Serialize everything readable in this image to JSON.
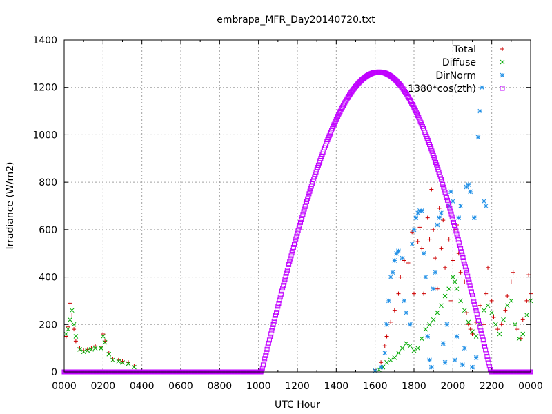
{
  "chart_data": {
    "type": "scatter",
    "title": "embrapa_MFR_Day20140720.txt",
    "xlabel": "UTC Hour",
    "ylabel": "Irradiance (W/m2)",
    "xlim": [
      0,
      24
    ],
    "ylim": [
      0,
      1400
    ],
    "x_tick_labels": [
      "0000",
      "0200",
      "0400",
      "0600",
      "0800",
      "1000",
      "1200",
      "1400",
      "1600",
      "1800",
      "2000",
      "2200",
      "0000"
    ],
    "y_tick_values": [
      0,
      200,
      400,
      600,
      800,
      1000,
      1200,
      1400
    ],
    "grid": true,
    "legend_position": "top-right",
    "series": [
      {
        "name": "Total",
        "marker": "+",
        "color": "#cc0000",
        "points": [
          [
            0.1,
            150
          ],
          [
            0.2,
            190
          ],
          [
            0.3,
            290
          ],
          [
            0.4,
            240
          ],
          [
            0.5,
            180
          ],
          [
            0.6,
            130
          ],
          [
            0.8,
            100
          ],
          [
            1.0,
            90
          ],
          [
            1.2,
            95
          ],
          [
            1.4,
            100
          ],
          [
            1.6,
            110
          ],
          [
            1.9,
            105
          ],
          [
            2.0,
            160
          ],
          [
            2.1,
            130
          ],
          [
            2.3,
            80
          ],
          [
            2.5,
            55
          ],
          [
            2.8,
            50
          ],
          [
            3.0,
            45
          ],
          [
            3.3,
            40
          ],
          [
            3.6,
            25
          ],
          [
            16.0,
            10
          ],
          [
            16.3,
            40
          ],
          [
            16.5,
            110
          ],
          [
            16.6,
            150
          ],
          [
            16.8,
            210
          ],
          [
            17.0,
            260
          ],
          [
            17.2,
            330
          ],
          [
            17.3,
            400
          ],
          [
            17.5,
            470
          ],
          [
            17.7,
            460
          ],
          [
            17.9,
            590
          ],
          [
            18.0,
            330
          ],
          [
            18.2,
            550
          ],
          [
            18.3,
            610
          ],
          [
            18.4,
            520
          ],
          [
            18.5,
            330
          ],
          [
            18.7,
            650
          ],
          [
            18.8,
            560
          ],
          [
            18.9,
            770
          ],
          [
            19.0,
            600
          ],
          [
            19.1,
            480
          ],
          [
            19.2,
            350
          ],
          [
            19.3,
            690
          ],
          [
            19.4,
            520
          ],
          [
            19.5,
            640
          ],
          [
            19.6,
            440
          ],
          [
            19.7,
            700
          ],
          [
            19.8,
            560
          ],
          [
            19.9,
            300
          ],
          [
            20.0,
            470
          ],
          [
            20.1,
            600
          ],
          [
            20.2,
            620
          ],
          [
            20.3,
            500
          ],
          [
            20.4,
            420
          ],
          [
            20.6,
            380
          ],
          [
            20.7,
            250
          ],
          [
            20.8,
            200
          ],
          [
            20.9,
            180
          ],
          [
            21.0,
            160
          ],
          [
            21.2,
            210
          ],
          [
            21.4,
            280
          ],
          [
            21.6,
            200
          ],
          [
            21.7,
            330
          ],
          [
            21.8,
            440
          ],
          [
            22.0,
            300
          ],
          [
            22.1,
            230
          ],
          [
            22.3,
            180
          ],
          [
            22.5,
            200
          ],
          [
            22.7,
            260
          ],
          [
            22.8,
            320
          ],
          [
            23.0,
            380
          ],
          [
            23.1,
            420
          ],
          [
            23.3,
            180
          ],
          [
            23.5,
            140
          ],
          [
            23.6,
            220
          ],
          [
            23.8,
            300
          ],
          [
            23.9,
            410
          ],
          [
            24.0,
            330
          ]
        ]
      },
      {
        "name": "Diffuse",
        "marker": "x",
        "color": "#00aa00",
        "points": [
          [
            0.1,
            160
          ],
          [
            0.2,
            180
          ],
          [
            0.3,
            220
          ],
          [
            0.4,
            260
          ],
          [
            0.5,
            200
          ],
          [
            0.6,
            150
          ],
          [
            0.8,
            95
          ],
          [
            1.0,
            85
          ],
          [
            1.2,
            90
          ],
          [
            1.4,
            95
          ],
          [
            1.6,
            100
          ],
          [
            1.9,
            100
          ],
          [
            2.0,
            150
          ],
          [
            2.1,
            125
          ],
          [
            2.3,
            75
          ],
          [
            2.5,
            50
          ],
          [
            2.8,
            45
          ],
          [
            3.0,
            40
          ],
          [
            3.3,
            35
          ],
          [
            3.6,
            20
          ],
          [
            16.0,
            5
          ],
          [
            16.2,
            10
          ],
          [
            16.4,
            20
          ],
          [
            16.6,
            40
          ],
          [
            16.8,
            50
          ],
          [
            17.0,
            60
          ],
          [
            17.2,
            80
          ],
          [
            17.4,
            100
          ],
          [
            17.6,
            120
          ],
          [
            17.8,
            110
          ],
          [
            18.0,
            90
          ],
          [
            18.2,
            100
          ],
          [
            18.4,
            140
          ],
          [
            18.6,
            180
          ],
          [
            18.8,
            200
          ],
          [
            19.0,
            220
          ],
          [
            19.2,
            250
          ],
          [
            19.4,
            280
          ],
          [
            19.6,
            320
          ],
          [
            19.8,
            350
          ],
          [
            20.0,
            400
          ],
          [
            20.1,
            380
          ],
          [
            20.2,
            350
          ],
          [
            20.4,
            300
          ],
          [
            20.6,
            260
          ],
          [
            20.8,
            210
          ],
          [
            21.0,
            170
          ],
          [
            21.2,
            150
          ],
          [
            21.4,
            200
          ],
          [
            21.6,
            260
          ],
          [
            21.8,
            280
          ],
          [
            22.0,
            250
          ],
          [
            22.2,
            200
          ],
          [
            22.4,
            160
          ],
          [
            22.6,
            220
          ],
          [
            22.8,
            280
          ],
          [
            23.0,
            300
          ],
          [
            23.2,
            200
          ],
          [
            23.4,
            140
          ],
          [
            23.6,
            160
          ],
          [
            23.8,
            240
          ],
          [
            24.0,
            300
          ]
        ]
      },
      {
        "name": "DirNorm",
        "marker": "*",
        "color": "#1f8fe6",
        "points": [
          [
            16.0,
            5
          ],
          [
            16.3,
            20
          ],
          [
            16.5,
            80
          ],
          [
            16.6,
            200
          ],
          [
            16.7,
            300
          ],
          [
            16.8,
            400
          ],
          [
            16.9,
            420
          ],
          [
            17.0,
            470
          ],
          [
            17.1,
            500
          ],
          [
            17.2,
            510
          ],
          [
            17.4,
            480
          ],
          [
            17.5,
            300
          ],
          [
            17.6,
            250
          ],
          [
            17.8,
            200
          ],
          [
            17.9,
            540
          ],
          [
            18.0,
            600
          ],
          [
            18.1,
            650
          ],
          [
            18.2,
            670
          ],
          [
            18.3,
            680
          ],
          [
            18.4,
            680
          ],
          [
            18.5,
            500
          ],
          [
            18.6,
            400
          ],
          [
            18.7,
            150
          ],
          [
            18.8,
            50
          ],
          [
            18.9,
            20
          ],
          [
            19.0,
            350
          ],
          [
            19.1,
            420
          ],
          [
            19.2,
            620
          ],
          [
            19.3,
            650
          ],
          [
            19.4,
            670
          ],
          [
            19.5,
            120
          ],
          [
            19.6,
            40
          ],
          [
            19.7,
            200
          ],
          [
            19.8,
            700
          ],
          [
            19.9,
            760
          ],
          [
            20.0,
            720
          ],
          [
            20.1,
            50
          ],
          [
            20.2,
            150
          ],
          [
            20.3,
            650
          ],
          [
            20.4,
            700
          ],
          [
            20.5,
            30
          ],
          [
            20.6,
            100
          ],
          [
            20.7,
            780
          ],
          [
            20.8,
            790
          ],
          [
            20.9,
            760
          ],
          [
            21.0,
            20
          ],
          [
            21.1,
            650
          ],
          [
            21.2,
            60
          ],
          [
            21.3,
            990
          ],
          [
            21.4,
            1100
          ],
          [
            21.5,
            1200
          ],
          [
            21.6,
            720
          ],
          [
            21.7,
            700
          ]
        ]
      },
      {
        "name": "1380*cos(zth)",
        "marker": "square",
        "color": "#c000ff",
        "curve": {
          "zero_before": 10.15,
          "zero_after": 21.95,
          "peak_x": 16.2,
          "peak_y": 1265
        }
      }
    ]
  }
}
